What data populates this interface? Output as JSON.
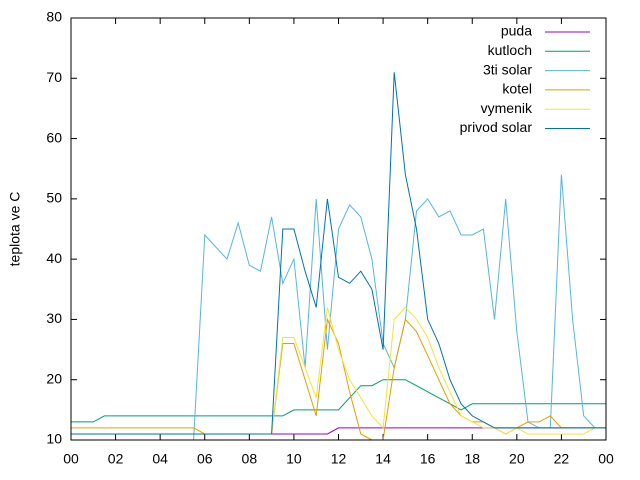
{
  "chart_data": {
    "type": "line",
    "ylabel": "teplota ve C",
    "x": [
      0,
      0.5,
      1,
      1.5,
      2,
      2.5,
      3,
      3.5,
      4,
      4.5,
      5,
      5.5,
      6,
      6.5,
      7,
      7.5,
      8,
      8.5,
      9,
      9.5,
      10,
      10.5,
      11,
      11.5,
      12,
      12.5,
      13,
      13.5,
      14,
      14.5,
      15,
      15.5,
      16,
      16.5,
      17,
      17.5,
      18,
      18.5,
      19,
      19.5,
      20,
      20.5,
      21,
      21.5,
      22,
      22.5,
      23,
      23.5,
      24
    ],
    "series": [
      {
        "name": "puda",
        "color": "#9400d3",
        "values": [
          11,
          11,
          11,
          11,
          11,
          11,
          11,
          11,
          11,
          11,
          11,
          11,
          11,
          11,
          11,
          11,
          11,
          11,
          11,
          11,
          11,
          11,
          11,
          11,
          12,
          12,
          12,
          12,
          12,
          12,
          12,
          12,
          12,
          12,
          12,
          12,
          12,
          12,
          12,
          12,
          12,
          12,
          12,
          12,
          12,
          12,
          12,
          12,
          12
        ]
      },
      {
        "name": "kutloch",
        "color": "#009e73",
        "values": [
          13,
          13,
          13,
          14,
          14,
          14,
          14,
          14,
          14,
          14,
          14,
          14,
          14,
          14,
          14,
          14,
          14,
          14,
          14,
          14,
          15,
          15,
          15,
          15,
          15,
          17,
          19,
          19,
          20,
          20,
          20,
          19,
          18,
          17,
          16,
          15,
          16,
          16,
          16,
          16,
          16,
          16,
          16,
          16,
          16,
          16,
          16,
          16,
          16
        ]
      },
      {
        "name": "3ti solar",
        "color": "#56b4e9",
        "values": [
          10,
          10,
          10,
          10,
          10,
          10,
          10,
          10,
          10,
          10,
          10,
          10,
          44,
          42,
          40,
          46,
          39,
          38,
          47,
          36,
          40,
          22,
          50,
          25,
          45,
          49,
          47,
          40,
          26,
          22,
          30,
          48,
          50,
          47,
          48,
          44,
          44,
          45,
          30,
          50,
          28,
          13,
          12,
          12,
          54,
          30,
          14,
          12,
          12
        ]
      },
      {
        "name": "kotel",
        "color": "#e69f00",
        "values": [
          12,
          12,
          12,
          12,
          12,
          12,
          12,
          12,
          12,
          12,
          12,
          12,
          11,
          11,
          11,
          11,
          11,
          11,
          11,
          26,
          26,
          20,
          14,
          30,
          26,
          18,
          11,
          10,
          10,
          22,
          30,
          28,
          24,
          20,
          16,
          14,
          13,
          13,
          12,
          11,
          12,
          13,
          13,
          14,
          12,
          12,
          12,
          12,
          12
        ]
      },
      {
        "name": "vymenik",
        "color": "#f0e442",
        "values": [
          11,
          11,
          11,
          11,
          11,
          11,
          11,
          11,
          11,
          11,
          11,
          11,
          11,
          11,
          11,
          11,
          11,
          11,
          11,
          27,
          27,
          22,
          17,
          32,
          25,
          20,
          17,
          14,
          12,
          30,
          32,
          30,
          27,
          22,
          18,
          14,
          13,
          12,
          12,
          11,
          12,
          11,
          11,
          11,
          11,
          11,
          11,
          12,
          12
        ]
      },
      {
        "name": "privod solar",
        "color": "#0072b2",
        "values": [
          11,
          11,
          11,
          11,
          11,
          11,
          11,
          11,
          11,
          11,
          11,
          11,
          11,
          11,
          11,
          11,
          11,
          11,
          11,
          45,
          45,
          38,
          32,
          50,
          37,
          36,
          38,
          35,
          25,
          71,
          54,
          45,
          30,
          26,
          20,
          16,
          14,
          13,
          12,
          12,
          12,
          12,
          12,
          12,
          12,
          12,
          12,
          12,
          12
        ]
      }
    ],
    "xlim": [
      0,
      24
    ],
    "xticks": [
      {
        "value": 0,
        "label": "00"
      },
      {
        "value": 2,
        "label": "02"
      },
      {
        "value": 4,
        "label": "04"
      },
      {
        "value": 6,
        "label": "06"
      },
      {
        "value": 8,
        "label": "08"
      },
      10,
      12,
      14,
      16,
      18,
      20,
      22,
      {
        "value": 24,
        "label": "00"
      }
    ],
    "ylim": [
      10,
      80
    ],
    "yticks": [
      10,
      20,
      30,
      40,
      50,
      60,
      70,
      80
    ],
    "legend": "top-right"
  }
}
